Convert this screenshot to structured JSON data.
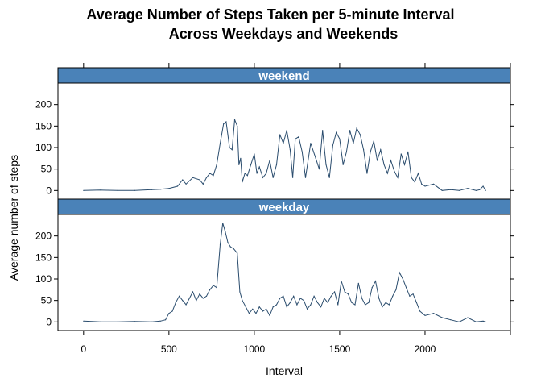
{
  "chart_data": {
    "type": "line",
    "title_lines": [
      "Average Number of Steps Taken per 5-minute Interval",
      "Across Weekdays and Weekends"
    ],
    "xlabel": "Interval",
    "ylabel": "Average number of steps",
    "xlim": [
      -150,
      2500
    ],
    "ylim": [
      -20,
      250
    ],
    "x_ticks": [
      0,
      500,
      1000,
      1500,
      2000
    ],
    "y_ticks": [
      0,
      50,
      100,
      150,
      200
    ],
    "grid": false,
    "legend": "none",
    "colors": {
      "line": "#2b4d6e",
      "strip": "#4a82b8"
    },
    "panels": [
      {
        "strip": "weekend",
        "series": [
          {
            "x": [
              0,
              100,
              200,
              300,
              400,
              450,
              500,
              550,
              580,
              600,
              640,
              680,
              700,
              720,
              740,
              760,
              780,
              800,
              820,
              835,
              845,
              855,
              870,
              885,
              900,
              910,
              920,
              930,
              945,
              960,
              980,
              1000,
              1015,
              1030,
              1050,
              1070,
              1090,
              1110,
              1130,
              1150,
              1170,
              1190,
              1210,
              1225,
              1240,
              1260,
              1280,
              1300,
              1330,
              1360,
              1380,
              1400,
              1420,
              1440,
              1460,
              1480,
              1500,
              1520,
              1540,
              1560,
              1580,
              1600,
              1620,
              1640,
              1660,
              1680,
              1700,
              1720,
              1740,
              1760,
              1780,
              1800,
              1820,
              1840,
              1860,
              1880,
              1900,
              1920,
              1940,
              1960,
              1980,
              2000,
              2050,
              2100,
              2150,
              2200,
              2250,
              2300,
              2320,
              2340,
              2355
            ],
            "y": [
              0,
              1,
              0,
              0,
              2,
              3,
              5,
              10,
              25,
              15,
              30,
              25,
              15,
              30,
              40,
              35,
              60,
              110,
              155,
              160,
              130,
              100,
              95,
              165,
              150,
              60,
              75,
              20,
              40,
              35,
              60,
              85,
              40,
              55,
              30,
              40,
              70,
              30,
              60,
              130,
              110,
              140,
              95,
              30,
              120,
              125,
              90,
              30,
              110,
              75,
              50,
              140,
              60,
              30,
              105,
              135,
              120,
              60,
              90,
              140,
              110,
              145,
              130,
              95,
              40,
              90,
              115,
              70,
              95,
              60,
              40,
              70,
              45,
              30,
              85,
              60,
              90,
              30,
              20,
              40,
              15,
              10,
              15,
              0,
              2,
              0,
              5,
              0,
              2,
              10,
              0
            ]
          }
        ]
      },
      {
        "strip": "weekday",
        "series": [
          {
            "x": [
              0,
              100,
              200,
              300,
              400,
              450,
              480,
              500,
              520,
              540,
              560,
              580,
              600,
              620,
              640,
              660,
              680,
              700,
              720,
              740,
              760,
              780,
              800,
              815,
              830,
              845,
              860,
              880,
              900,
              915,
              930,
              950,
              970,
              990,
              1010,
              1030,
              1050,
              1070,
              1090,
              1110,
              1130,
              1150,
              1170,
              1190,
              1210,
              1230,
              1250,
              1270,
              1290,
              1310,
              1330,
              1350,
              1370,
              1390,
              1410,
              1430,
              1450,
              1470,
              1490,
              1510,
              1530,
              1550,
              1570,
              1590,
              1610,
              1630,
              1650,
              1670,
              1690,
              1710,
              1730,
              1750,
              1770,
              1790,
              1810,
              1830,
              1850,
              1870,
              1890,
              1910,
              1930,
              1950,
              1970,
              2000,
              2050,
              2100,
              2150,
              2200,
              2250,
              2300,
              2340,
              2355
            ],
            "y": [
              2,
              0,
              0,
              1,
              0,
              2,
              5,
              20,
              25,
              45,
              60,
              50,
              40,
              55,
              70,
              50,
              65,
              55,
              60,
              75,
              85,
              80,
              180,
              230,
              210,
              185,
              175,
              170,
              160,
              70,
              50,
              35,
              20,
              30,
              20,
              35,
              25,
              30,
              15,
              35,
              40,
              55,
              60,
              35,
              45,
              60,
              40,
              55,
              50,
              30,
              40,
              60,
              45,
              35,
              55,
              45,
              60,
              70,
              40,
              95,
              70,
              65,
              45,
              40,
              90,
              55,
              40,
              45,
              80,
              95,
              55,
              35,
              45,
              40,
              60,
              75,
              115,
              100,
              80,
              60,
              65,
              45,
              25,
              15,
              20,
              10,
              5,
              0,
              10,
              0,
              2,
              0
            ]
          }
        ]
      }
    ]
  }
}
